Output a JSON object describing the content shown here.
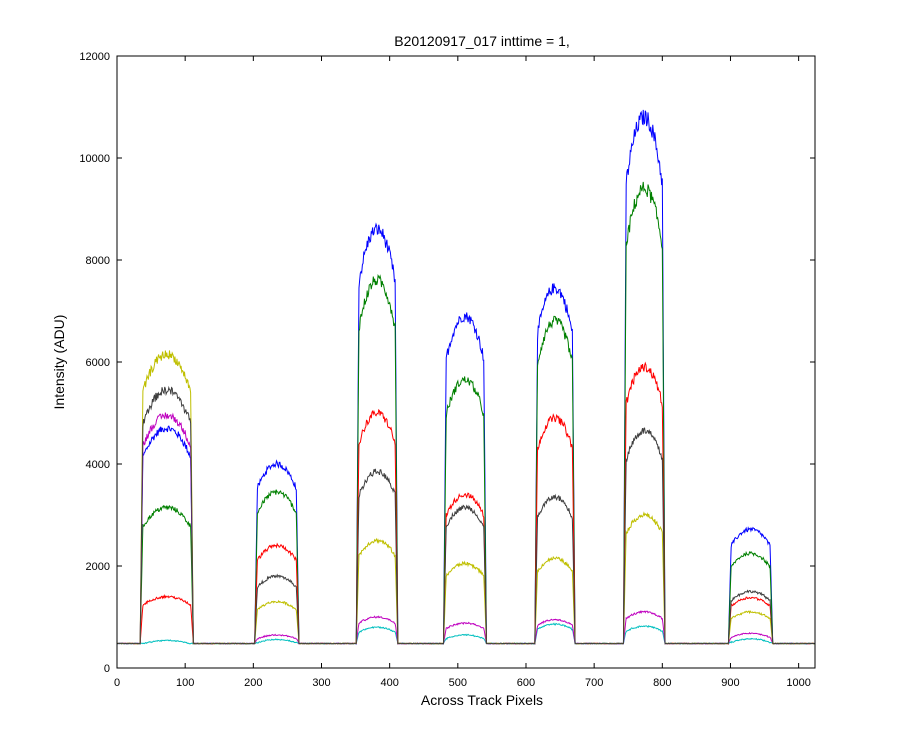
{
  "chart_data": {
    "type": "line",
    "title": "B20120917_017 inttime = 1,",
    "xlabel": "Across Track Pixels",
    "ylabel": "Intensity (ADU)",
    "xlim": [
      0,
      1024
    ],
    "ylim": [
      0,
      12000
    ],
    "xticks": [
      "0",
      "100",
      "200",
      "300",
      "400",
      "500",
      "600",
      "700",
      "800",
      "900",
      "1000"
    ],
    "yticks": [
      "0",
      "2000",
      "4000",
      "6000",
      "8000",
      "10000",
      "12000"
    ],
    "grid": false,
    "baseline": 480,
    "segments": [
      {
        "x_start": 38,
        "x_end": 108
      },
      {
        "x_start": 206,
        "x_end": 263
      },
      {
        "x_start": 355,
        "x_end": 408
      },
      {
        "x_start": 483,
        "x_end": 538
      },
      {
        "x_start": 617,
        "x_end": 668
      },
      {
        "x_start": 747,
        "x_end": 800
      },
      {
        "x_start": 901,
        "x_end": 958
      }
    ],
    "series": [
      {
        "color": "#0000ff",
        "peaks": [
          4700,
          4000,
          8600,
          6900,
          7450,
          10800,
          2720
        ]
      },
      {
        "color": "#008000",
        "peaks": [
          3150,
          3450,
          7600,
          5650,
          6800,
          9400,
          2250
        ]
      },
      {
        "color": "#ff0000",
        "peaks": [
          1400,
          2400,
          5000,
          3400,
          4900,
          5900,
          1380
        ]
      },
      {
        "color": "#00bfbf",
        "peaks": [
          540,
          560,
          800,
          650,
          860,
          820,
          570
        ]
      },
      {
        "color": "#bf00bf",
        "peaks": [
          4950,
          650,
          1000,
          880,
          950,
          1100,
          680
        ]
      },
      {
        "color": "#bfbf00",
        "peaks": [
          6150,
          1300,
          2500,
          2050,
          2150,
          3000,
          1100
        ]
      },
      {
        "color": "#3f3f3f",
        "peaks": [
          5450,
          1800,
          3850,
          3150,
          3350,
          4650,
          1500
        ]
      }
    ]
  }
}
